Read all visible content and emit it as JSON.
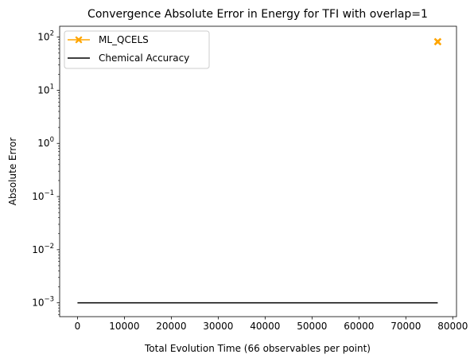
{
  "chart_data": {
    "type": "line",
    "title": "Convergence Absolute Error in Energy for TFI with overlap=1",
    "xlabel": "Total Evolution Time (66 observables per point)",
    "ylabel": "Absolute Error",
    "xlim": [
      -3800,
      80800
    ],
    "ylim": [
      0.00055,
      160
    ],
    "yscale": "log",
    "xticks": [
      0,
      10000,
      20000,
      30000,
      40000,
      50000,
      60000,
      70000,
      80000
    ],
    "xtick_labels": [
      "0",
      "10000",
      "20000",
      "30000",
      "40000",
      "50000",
      "60000",
      "70000",
      "80000"
    ],
    "yticks": [
      0.001,
      0.01,
      0.1,
      1,
      10,
      100
    ],
    "ytick_labels": [
      {
        "base": "10",
        "exp": "−3"
      },
      {
        "base": "10",
        "exp": "−2"
      },
      {
        "base": "10",
        "exp": "−1"
      },
      {
        "base": "10",
        "exp": "0"
      },
      {
        "base": "10",
        "exp": "1"
      },
      {
        "base": "10",
        "exp": "2"
      }
    ],
    "grid": false,
    "legend_position": "upper-left",
    "series": [
      {
        "name": "ML_QCELS",
        "color": "#ffa500",
        "marker": "X",
        "x": [
          76800
        ],
        "y": [
          82
        ]
      },
      {
        "name": "Chemical Accuracy",
        "color": "#000000",
        "marker": "none",
        "x": [
          0,
          76800
        ],
        "y": [
          0.001,
          0.001
        ]
      }
    ]
  }
}
